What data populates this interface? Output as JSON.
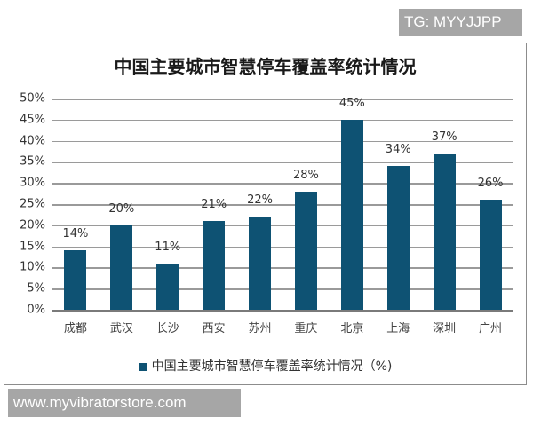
{
  "watermarks": {
    "top_right": "TG: MYYJJPP",
    "bottom_left": "www.myvibratorstore.com"
  },
  "colors": {
    "bar": "#0e5273",
    "grid": "#9a9a9a",
    "watermark_bg": "#a6a6a6"
  },
  "chart_data": {
    "type": "bar",
    "title": "中国主要城市智慧停车覆盖率统计情况",
    "categories": [
      "成都",
      "武汉",
      "长沙",
      "西安",
      "苏州",
      "重庆",
      "北京",
      "上海",
      "深圳",
      "广州"
    ],
    "values": [
      14,
      20,
      11,
      21,
      22,
      28,
      45,
      34,
      37,
      26
    ],
    "value_labels": [
      "14%",
      "20%",
      "11%",
      "21%",
      "22%",
      "28%",
      "45%",
      "34%",
      "37%",
      "26%"
    ],
    "series": [
      {
        "name": "中国主要城市智慧停车覆盖率统计情况（%)",
        "values": [
          14,
          20,
          11,
          21,
          22,
          28,
          45,
          34,
          37,
          26
        ]
      }
    ],
    "xlabel": "",
    "ylabel": "",
    "ylim": [
      0,
      50
    ],
    "yticks": [
      "0%",
      "5%",
      "10%",
      "15%",
      "20%",
      "25%",
      "30%",
      "35%",
      "40%",
      "45%",
      "50%"
    ],
    "grid": true,
    "legend_position": "bottom",
    "legend_label": "中国主要城市智慧停车覆盖率统计情况（%)"
  }
}
